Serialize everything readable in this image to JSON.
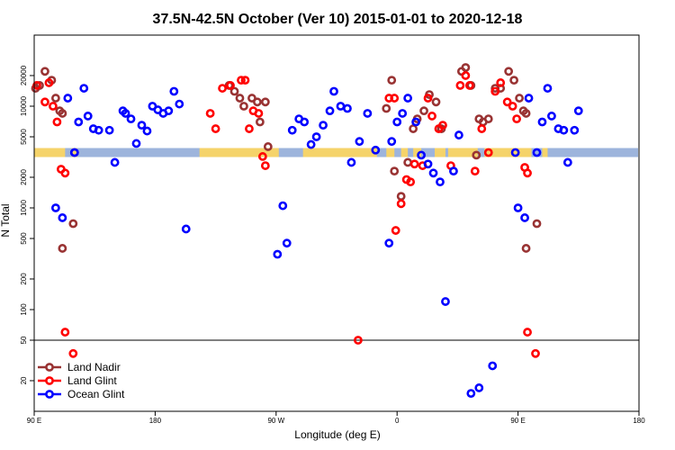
{
  "chart_data": {
    "type": "scatter",
    "title": "37.5N-42.5N October (Ver 10)   2015-01-01 to 2020-12-18",
    "xlabel": "Longitude (deg E)",
    "ylabel": "N Total",
    "y_scale": "log",
    "ylim": [
      10,
      50000
    ],
    "x_ticks": [
      {
        "pos": 90,
        "label": "90 E"
      },
      {
        "pos": 180,
        "label": "180"
      },
      {
        "pos": 270,
        "label": "90 W"
      },
      {
        "pos": 360,
        "label": "0"
      },
      {
        "pos": 450,
        "label": "90 E"
      },
      {
        "pos": 540,
        "label": "180"
      }
    ],
    "y_ticks": [
      {
        "value": 20,
        "label": "20"
      },
      {
        "value": 50,
        "label": "50"
      },
      {
        "value": 100,
        "label": "100"
      },
      {
        "value": 200,
        "label": "200"
      },
      {
        "value": 500,
        "label": "500"
      },
      {
        "value": 1000,
        "label": "1000"
      },
      {
        "value": 2000,
        "label": "2000"
      },
      {
        "value": 5000,
        "label": "5000"
      },
      {
        "value": 10000,
        "label": "10000"
      },
      {
        "value": 20000,
        "label": "20000"
      }
    ],
    "separator_value": 50,
    "land_mask_strip_value": 3500,
    "legend_position": "bottom-left",
    "series": [
      {
        "name": "Land Nadir",
        "color": "#993333",
        "points": [
          [
            91,
            15000
          ],
          [
            94,
            16000
          ],
          [
            98,
            22000
          ],
          [
            103,
            18000
          ],
          [
            106,
            12000
          ],
          [
            109,
            9000
          ],
          [
            111,
            8500
          ],
          [
            119,
            700
          ],
          [
            111,
            400
          ],
          [
            235,
            16000
          ],
          [
            239,
            14000
          ],
          [
            243,
            12000
          ],
          [
            246,
            10000
          ],
          [
            252,
            12000
          ],
          [
            256,
            11000
          ],
          [
            258,
            7000
          ],
          [
            262,
            11000
          ],
          [
            264,
            4000
          ],
          [
            352,
            9500
          ],
          [
            356,
            18000
          ],
          [
            358,
            2300
          ],
          [
            363,
            1300
          ],
          [
            368,
            2800
          ],
          [
            372,
            6000
          ],
          [
            375,
            7500
          ],
          [
            380,
            9000
          ],
          [
            384,
            13000
          ],
          [
            389,
            11000
          ],
          [
            393,
            6000
          ],
          [
            408,
            22000
          ],
          [
            411,
            24000
          ],
          [
            415,
            16000
          ],
          [
            419,
            3300
          ],
          [
            421,
            7500
          ],
          [
            424,
            7000
          ],
          [
            428,
            7500
          ],
          [
            433,
            15000
          ],
          [
            437,
            15000
          ],
          [
            443,
            22000
          ],
          [
            447,
            18000
          ],
          [
            451,
            12000
          ],
          [
            454,
            9000
          ],
          [
            456,
            8500
          ],
          [
            464,
            700
          ],
          [
            456,
            400
          ]
        ]
      },
      {
        "name": "Land Glint",
        "color": "#ff0000",
        "points": [
          [
            92,
            16000
          ],
          [
            98,
            11000
          ],
          [
            101,
            17000
          ],
          [
            104,
            10000
          ],
          [
            107,
            7000
          ],
          [
            110,
            2400
          ],
          [
            113,
            2200
          ],
          [
            113,
            60
          ],
          [
            119,
            37
          ],
          [
            221,
            8500
          ],
          [
            225,
            6000
          ],
          [
            230,
            15000
          ],
          [
            236,
            16000
          ],
          [
            244,
            18000
          ],
          [
            247,
            18000
          ],
          [
            250,
            6000
          ],
          [
            253,
            9000
          ],
          [
            257,
            8500
          ],
          [
            260,
            3200
          ],
          [
            262,
            2600
          ],
          [
            331,
            50
          ],
          [
            354,
            12000
          ],
          [
            358,
            12000
          ],
          [
            359,
            600
          ],
          [
            363,
            1100
          ],
          [
            367,
            1900
          ],
          [
            370,
            1800
          ],
          [
            373,
            2700
          ],
          [
            379,
            2600
          ],
          [
            383,
            12000
          ],
          [
            386,
            8000
          ],
          [
            391,
            6000
          ],
          [
            394,
            6500
          ],
          [
            400,
            2600
          ],
          [
            407,
            16000
          ],
          [
            411,
            20000
          ],
          [
            414,
            16000
          ],
          [
            418,
            2300
          ],
          [
            423,
            6000
          ],
          [
            428,
            3500
          ],
          [
            433,
            14000
          ],
          [
            437,
            17000
          ],
          [
            442,
            11000
          ],
          [
            446,
            10000
          ],
          [
            449,
            7500
          ],
          [
            455,
            2500
          ],
          [
            457,
            2200
          ],
          [
            457,
            60
          ],
          [
            463,
            37
          ]
        ]
      },
      {
        "name": "Ocean Glint",
        "color": "#0000ff",
        "points": [
          [
            120,
            3500
          ],
          [
            123,
            7000
          ],
          [
            127,
            15000
          ],
          [
            130,
            8000
          ],
          [
            134,
            6000
          ],
          [
            138,
            5800
          ],
          [
            146,
            5800
          ],
          [
            150,
            2800
          ],
          [
            156,
            9000
          ],
          [
            158,
            8500
          ],
          [
            162,
            7500
          ],
          [
            166,
            4300
          ],
          [
            170,
            6500
          ],
          [
            174,
            5700
          ],
          [
            178,
            10000
          ],
          [
            182,
            9200
          ],
          [
            186,
            8500
          ],
          [
            190,
            9000
          ],
          [
            194,
            14000
          ],
          [
            198,
            10500
          ],
          [
            203,
            620
          ],
          [
            106,
            1000
          ],
          [
            111,
            800
          ],
          [
            115,
            12000
          ],
          [
            120,
            3500
          ],
          [
            271,
            350
          ],
          [
            275,
            1050
          ],
          [
            278,
            450
          ],
          [
            282,
            5800
          ],
          [
            287,
            7500
          ],
          [
            291,
            7000
          ],
          [
            296,
            4200
          ],
          [
            300,
            5000
          ],
          [
            305,
            6500
          ],
          [
            310,
            9000
          ],
          [
            313,
            14000
          ],
          [
            318,
            10000
          ],
          [
            323,
            9500
          ],
          [
            326,
            2800
          ],
          [
            332,
            4500
          ],
          [
            338,
            8500
          ],
          [
            344,
            3700
          ],
          [
            354,
            450
          ],
          [
            356,
            4500
          ],
          [
            360,
            7000
          ],
          [
            364,
            8500
          ],
          [
            368,
            12000
          ],
          [
            374,
            7000
          ],
          [
            378,
            3300
          ],
          [
            383,
            2700
          ],
          [
            387,
            2200
          ],
          [
            392,
            1800
          ],
          [
            396,
            120
          ],
          [
            402,
            2300
          ],
          [
            406,
            5200
          ],
          [
            415,
            15
          ],
          [
            421,
            17
          ],
          [
            431,
            28
          ],
          [
            458,
            12000
          ],
          [
            464,
            3500
          ],
          [
            468,
            7000
          ],
          [
            472,
            15000
          ],
          [
            475,
            8000
          ],
          [
            480,
            6000
          ],
          [
            484,
            5800
          ],
          [
            487,
            2800
          ],
          [
            492,
            5800
          ],
          [
            495,
            9000
          ],
          [
            450,
            1000
          ],
          [
            455,
            800
          ],
          [
            448,
            3500
          ]
        ]
      }
    ]
  }
}
